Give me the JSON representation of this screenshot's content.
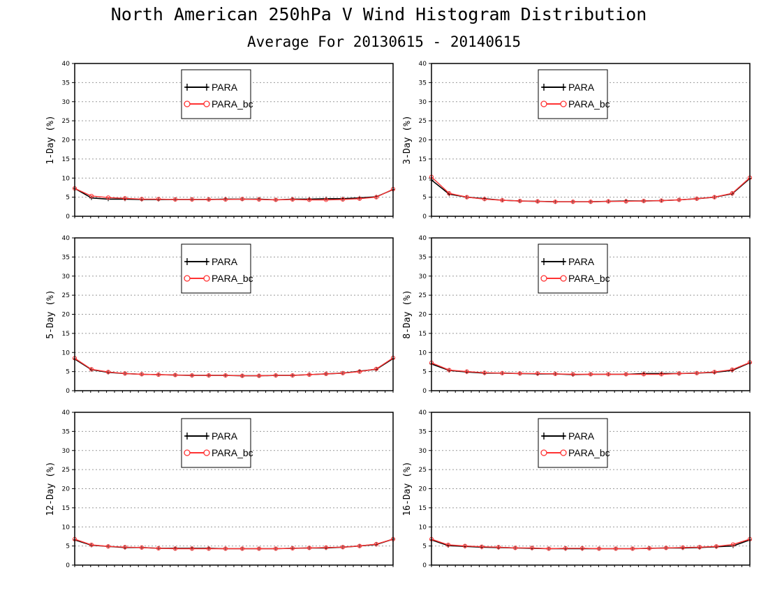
{
  "title": "North American 250hPa V Wind Histogram Distribution",
  "subtitle": "Average For 20130615 - 20140615",
  "colors": {
    "para": "#000000",
    "para_bc": "#ff3333",
    "grid": "#999999"
  },
  "chart_data": [
    {
      "type": "line",
      "ylabel": "1-Day (%)",
      "ylim": [
        0,
        40
      ],
      "yticks": [
        0,
        5,
        10,
        15,
        20,
        25,
        30,
        35,
        40
      ],
      "grid": true,
      "legend_position": "top-center",
      "series": [
        {
          "name": "PARA",
          "marker": "plus",
          "values": [
            7.3,
            4.8,
            4.5,
            4.5,
            4.4,
            4.4,
            4.4,
            4.4,
            4.4,
            4.5,
            4.5,
            4.5,
            4.3,
            4.5,
            4.5,
            4.6,
            4.6,
            4.8,
            5.1,
            7.0
          ]
        },
        {
          "name": "PARA_bc",
          "marker": "circle",
          "values": [
            7.3,
            5.3,
            4.9,
            4.7,
            4.5,
            4.5,
            4.4,
            4.4,
            4.4,
            4.4,
            4.5,
            4.4,
            4.3,
            4.4,
            4.3,
            4.3,
            4.4,
            4.6,
            5.0,
            7.1
          ]
        }
      ]
    },
    {
      "type": "line",
      "ylabel": "3-Day (%)",
      "ylim": [
        0,
        40
      ],
      "yticks": [
        0,
        5,
        10,
        15,
        20,
        25,
        30,
        35,
        40
      ],
      "grid": true,
      "legend_position": "top-center",
      "series": [
        {
          "name": "PARA",
          "marker": "plus",
          "values": [
            9.5,
            5.8,
            5.0,
            4.6,
            4.2,
            4.0,
            3.9,
            3.8,
            3.8,
            3.8,
            3.9,
            4.0,
            4.0,
            4.1,
            4.3,
            4.6,
            5.0,
            5.9,
            9.9
          ]
        },
        {
          "name": "PARA_bc",
          "marker": "circle",
          "values": [
            10.3,
            6.0,
            5.0,
            4.5,
            4.2,
            4.0,
            3.9,
            3.8,
            3.8,
            3.8,
            3.9,
            3.9,
            4.0,
            4.1,
            4.3,
            4.6,
            5.0,
            6.0,
            10.1
          ]
        }
      ]
    },
    {
      "type": "line",
      "ylabel": "5-Day (%)",
      "ylim": [
        0,
        40
      ],
      "yticks": [
        0,
        5,
        10,
        15,
        20,
        25,
        30,
        35,
        40
      ],
      "grid": true,
      "legend_position": "top-center",
      "series": [
        {
          "name": "PARA",
          "marker": "plus",
          "values": [
            8.3,
            5.5,
            4.8,
            4.5,
            4.3,
            4.2,
            4.1,
            4.0,
            4.0,
            4.0,
            3.9,
            3.9,
            4.0,
            4.0,
            4.2,
            4.4,
            4.6,
            5.1,
            5.6,
            8.4
          ]
        },
        {
          "name": "PARA_bc",
          "marker": "circle",
          "values": [
            8.5,
            5.6,
            4.9,
            4.5,
            4.3,
            4.2,
            4.1,
            4.0,
            4.0,
            4.0,
            3.9,
            3.9,
            4.0,
            4.0,
            4.2,
            4.4,
            4.6,
            5.0,
            5.7,
            8.6
          ]
        }
      ]
    },
    {
      "type": "line",
      "ylabel": "8-Day (%)",
      "ylim": [
        0,
        40
      ],
      "yticks": [
        0,
        5,
        10,
        15,
        20,
        25,
        30,
        35,
        40
      ],
      "grid": true,
      "legend_position": "top-center",
      "series": [
        {
          "name": "PARA",
          "marker": "plus",
          "values": [
            7.0,
            5.3,
            4.9,
            4.6,
            4.6,
            4.5,
            4.4,
            4.4,
            4.2,
            4.3,
            4.3,
            4.3,
            4.5,
            4.5,
            4.5,
            4.6,
            4.8,
            5.3,
            7.3
          ]
        },
        {
          "name": "PARA_bc",
          "marker": "circle",
          "values": [
            7.3,
            5.4,
            5.0,
            4.7,
            4.6,
            4.5,
            4.5,
            4.4,
            4.3,
            4.3,
            4.3,
            4.3,
            4.3,
            4.3,
            4.5,
            4.6,
            4.9,
            5.5,
            7.4
          ]
        }
      ]
    },
    {
      "type": "line",
      "ylabel": "12-Day (%)",
      "ylim": [
        0,
        40
      ],
      "yticks": [
        0,
        5,
        10,
        15,
        20,
        25,
        30,
        35,
        40
      ],
      "grid": true,
      "legend_position": "top-center",
      "series": [
        {
          "name": "PARA",
          "marker": "plus",
          "values": [
            6.6,
            5.2,
            4.9,
            4.6,
            4.6,
            4.4,
            4.4,
            4.4,
            4.4,
            4.3,
            4.3,
            4.3,
            4.3,
            4.4,
            4.5,
            4.5,
            4.7,
            5.0,
            5.4,
            6.8
          ]
        },
        {
          "name": "PARA_bc",
          "marker": "circle",
          "values": [
            6.8,
            5.3,
            4.9,
            4.7,
            4.6,
            4.4,
            4.3,
            4.3,
            4.3,
            4.3,
            4.3,
            4.3,
            4.3,
            4.4,
            4.5,
            4.6,
            4.7,
            5.0,
            5.5,
            6.8
          ]
        }
      ]
    },
    {
      "type": "line",
      "ylabel": "16-Day (%)",
      "ylim": [
        0,
        40
      ],
      "yticks": [
        0,
        5,
        10,
        15,
        20,
        25,
        30,
        35,
        40
      ],
      "grid": true,
      "legend_position": "top-center",
      "series": [
        {
          "name": "PARA",
          "marker": "plus",
          "values": [
            6.6,
            5.1,
            4.9,
            4.7,
            4.6,
            4.5,
            4.4,
            4.3,
            4.3,
            4.3,
            4.3,
            4.3,
            4.3,
            4.4,
            4.5,
            4.5,
            4.6,
            4.8,
            5.0,
            6.6
          ]
        },
        {
          "name": "PARA_bc",
          "marker": "circle",
          "values": [
            6.8,
            5.3,
            5.0,
            4.8,
            4.7,
            4.5,
            4.5,
            4.3,
            4.4,
            4.4,
            4.3,
            4.3,
            4.3,
            4.4,
            4.5,
            4.6,
            4.7,
            4.9,
            5.4,
            6.8
          ]
        }
      ]
    }
  ]
}
